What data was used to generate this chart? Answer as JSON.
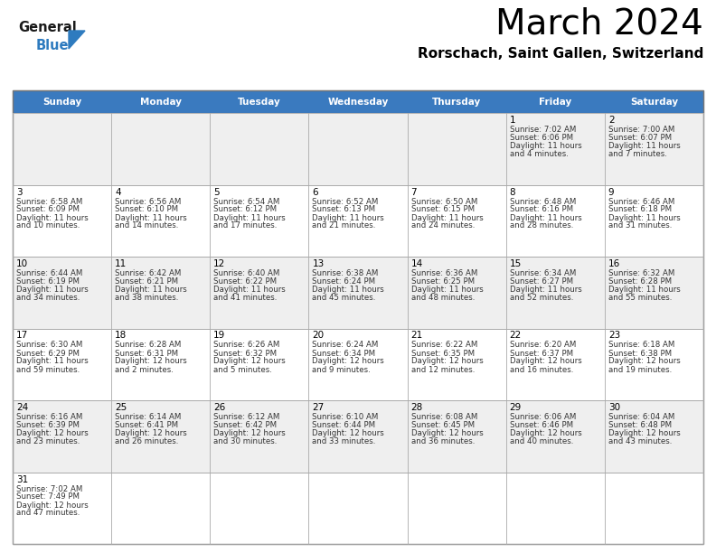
{
  "title": "March 2024",
  "subtitle": "Rorschach, Saint Gallen, Switzerland",
  "days_of_week": [
    "Sunday",
    "Monday",
    "Tuesday",
    "Wednesday",
    "Thursday",
    "Friday",
    "Saturday"
  ],
  "header_bg": "#3a7abf",
  "header_text": "#FFFFFF",
  "odd_row_bg": "#EFEFEF",
  "even_row_bg": "#FFFFFF",
  "border_color": "#AAAAAA",
  "title_color": "#000000",
  "day_num_color": "#000000",
  "cell_text_color": "#333333",
  "calendar": [
    [
      null,
      null,
      null,
      null,
      null,
      {
        "day": "1",
        "sunrise": "7:02 AM",
        "sunset": "6:06 PM",
        "daylight": "11 hours\nand 4 minutes."
      },
      {
        "day": "2",
        "sunrise": "7:00 AM",
        "sunset": "6:07 PM",
        "daylight": "11 hours\nand 7 minutes."
      }
    ],
    [
      {
        "day": "3",
        "sunrise": "6:58 AM",
        "sunset": "6:09 PM",
        "daylight": "11 hours\nand 10 minutes."
      },
      {
        "day": "4",
        "sunrise": "6:56 AM",
        "sunset": "6:10 PM",
        "daylight": "11 hours\nand 14 minutes."
      },
      {
        "day": "5",
        "sunrise": "6:54 AM",
        "sunset": "6:12 PM",
        "daylight": "11 hours\nand 17 minutes."
      },
      {
        "day": "6",
        "sunrise": "6:52 AM",
        "sunset": "6:13 PM",
        "daylight": "11 hours\nand 21 minutes."
      },
      {
        "day": "7",
        "sunrise": "6:50 AM",
        "sunset": "6:15 PM",
        "daylight": "11 hours\nand 24 minutes."
      },
      {
        "day": "8",
        "sunrise": "6:48 AM",
        "sunset": "6:16 PM",
        "daylight": "11 hours\nand 28 minutes."
      },
      {
        "day": "9",
        "sunrise": "6:46 AM",
        "sunset": "6:18 PM",
        "daylight": "11 hours\nand 31 minutes."
      }
    ],
    [
      {
        "day": "10",
        "sunrise": "6:44 AM",
        "sunset": "6:19 PM",
        "daylight": "11 hours\nand 34 minutes."
      },
      {
        "day": "11",
        "sunrise": "6:42 AM",
        "sunset": "6:21 PM",
        "daylight": "11 hours\nand 38 minutes."
      },
      {
        "day": "12",
        "sunrise": "6:40 AM",
        "sunset": "6:22 PM",
        "daylight": "11 hours\nand 41 minutes."
      },
      {
        "day": "13",
        "sunrise": "6:38 AM",
        "sunset": "6:24 PM",
        "daylight": "11 hours\nand 45 minutes."
      },
      {
        "day": "14",
        "sunrise": "6:36 AM",
        "sunset": "6:25 PM",
        "daylight": "11 hours\nand 48 minutes."
      },
      {
        "day": "15",
        "sunrise": "6:34 AM",
        "sunset": "6:27 PM",
        "daylight": "11 hours\nand 52 minutes."
      },
      {
        "day": "16",
        "sunrise": "6:32 AM",
        "sunset": "6:28 PM",
        "daylight": "11 hours\nand 55 minutes."
      }
    ],
    [
      {
        "day": "17",
        "sunrise": "6:30 AM",
        "sunset": "6:29 PM",
        "daylight": "11 hours\nand 59 minutes."
      },
      {
        "day": "18",
        "sunrise": "6:28 AM",
        "sunset": "6:31 PM",
        "daylight": "12 hours\nand 2 minutes."
      },
      {
        "day": "19",
        "sunrise": "6:26 AM",
        "sunset": "6:32 PM",
        "daylight": "12 hours\nand 5 minutes."
      },
      {
        "day": "20",
        "sunrise": "6:24 AM",
        "sunset": "6:34 PM",
        "daylight": "12 hours\nand 9 minutes."
      },
      {
        "day": "21",
        "sunrise": "6:22 AM",
        "sunset": "6:35 PM",
        "daylight": "12 hours\nand 12 minutes."
      },
      {
        "day": "22",
        "sunrise": "6:20 AM",
        "sunset": "6:37 PM",
        "daylight": "12 hours\nand 16 minutes."
      },
      {
        "day": "23",
        "sunrise": "6:18 AM",
        "sunset": "6:38 PM",
        "daylight": "12 hours\nand 19 minutes."
      }
    ],
    [
      {
        "day": "24",
        "sunrise": "6:16 AM",
        "sunset": "6:39 PM",
        "daylight": "12 hours\nand 23 minutes."
      },
      {
        "day": "25",
        "sunrise": "6:14 AM",
        "sunset": "6:41 PM",
        "daylight": "12 hours\nand 26 minutes."
      },
      {
        "day": "26",
        "sunrise": "6:12 AM",
        "sunset": "6:42 PM",
        "daylight": "12 hours\nand 30 minutes."
      },
      {
        "day": "27",
        "sunrise": "6:10 AM",
        "sunset": "6:44 PM",
        "daylight": "12 hours\nand 33 minutes."
      },
      {
        "day": "28",
        "sunrise": "6:08 AM",
        "sunset": "6:45 PM",
        "daylight": "12 hours\nand 36 minutes."
      },
      {
        "day": "29",
        "sunrise": "6:06 AM",
        "sunset": "6:46 PM",
        "daylight": "12 hours\nand 40 minutes."
      },
      {
        "day": "30",
        "sunrise": "6:04 AM",
        "sunset": "6:48 PM",
        "daylight": "12 hours\nand 43 minutes."
      }
    ],
    [
      {
        "day": "31",
        "sunrise": "7:02 AM",
        "sunset": "7:49 PM",
        "daylight": "12 hours\nand 47 minutes."
      },
      null,
      null,
      null,
      null,
      null,
      null
    ]
  ]
}
